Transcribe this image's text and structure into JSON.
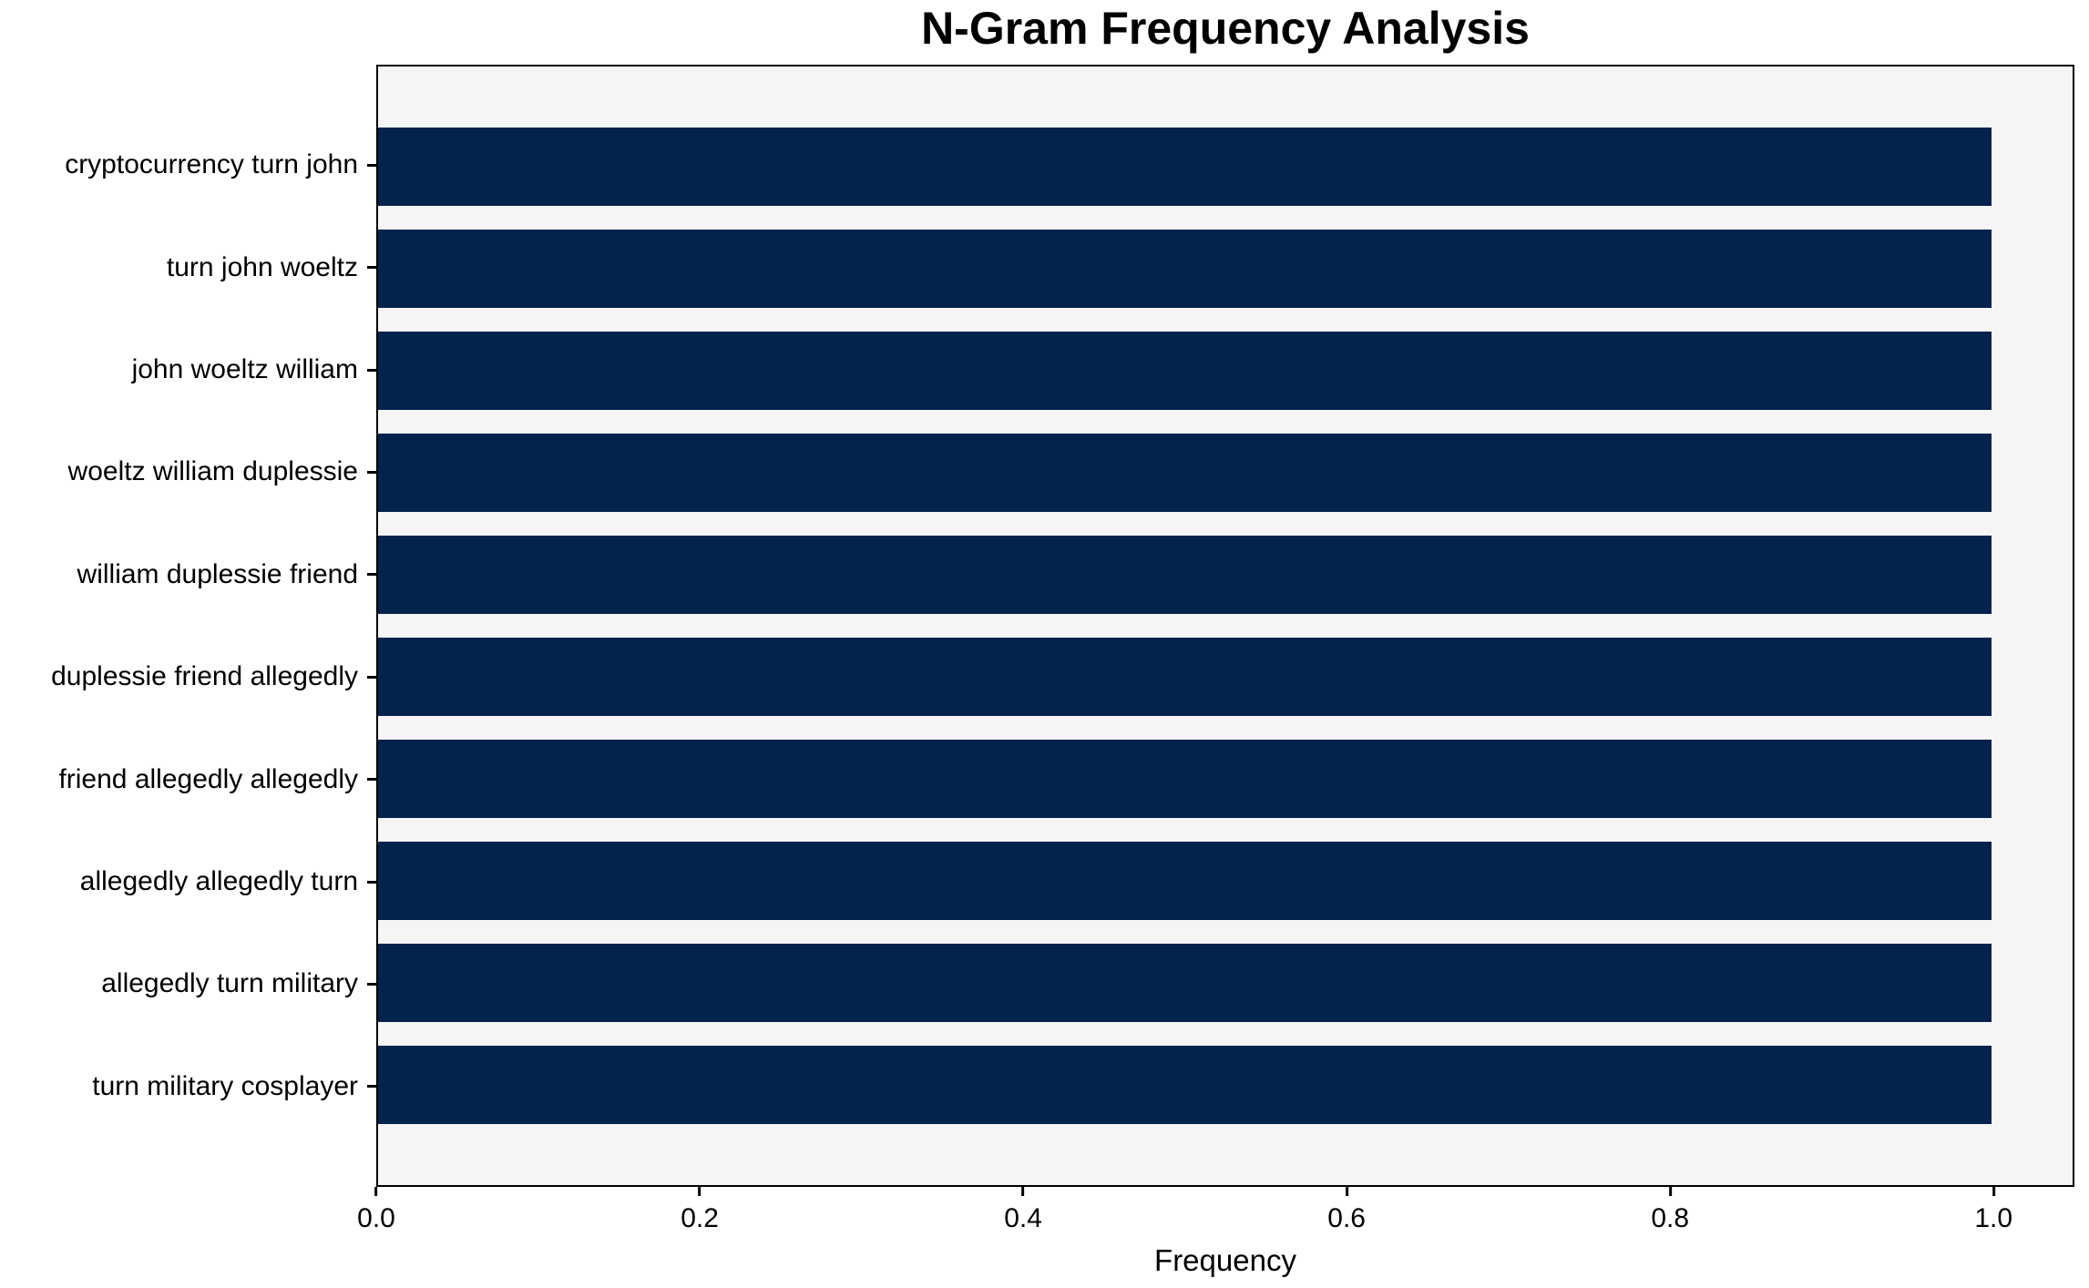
{
  "chart_data": {
    "type": "bar",
    "orientation": "horizontal",
    "title": "N-Gram Frequency Analysis",
    "xlabel": "Frequency",
    "ylabel": "",
    "categories": [
      "cryptocurrency turn john",
      "turn john woeltz",
      "john woeltz william",
      "woeltz william duplessie",
      "william duplessie friend",
      "duplessie friend allegedly",
      "friend allegedly allegedly",
      "allegedly allegedly turn",
      "allegedly turn military",
      "turn military cosplayer"
    ],
    "values": [
      1.0,
      1.0,
      1.0,
      1.0,
      1.0,
      1.0,
      1.0,
      1.0,
      1.0,
      1.0
    ],
    "xlim": [
      0,
      1.05
    ],
    "xticks": [
      0.0,
      0.2,
      0.4,
      0.6,
      0.8,
      1.0
    ],
    "xtick_labels": [
      "0.0",
      "0.2",
      "0.4",
      "0.6",
      "0.8",
      "1.0"
    ],
    "grid": false,
    "legend": null,
    "bar_color": "#03234d",
    "plot_bg_color": "#f5f5f6",
    "figure_bg_color": "#ffffff",
    "axis_color": "#000000"
  }
}
